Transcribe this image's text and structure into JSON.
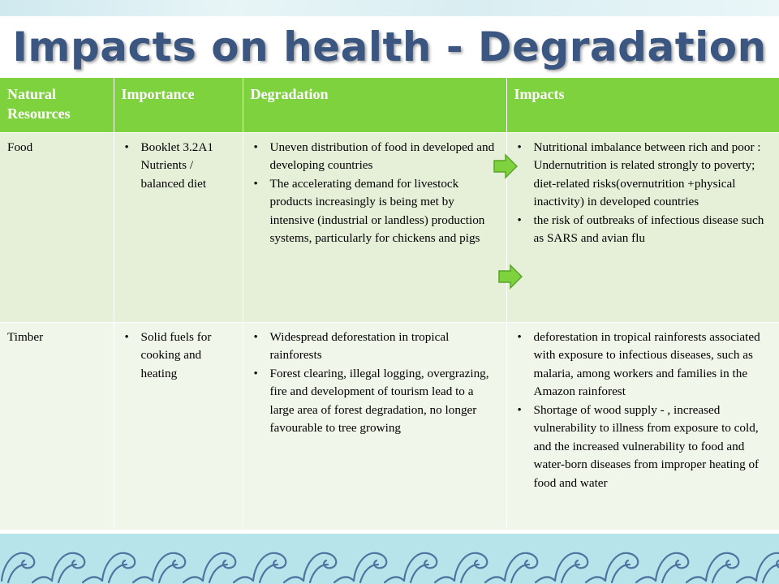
{
  "slide": {
    "title": "Impacts on health - Degradation"
  },
  "table": {
    "headers": [
      "Natural Resources",
      "Importance",
      "Degradation",
      "Impacts"
    ],
    "rows": [
      {
        "resource": "Food",
        "importance": [
          "Booklet 3.2A1 Nutrients / balanced diet"
        ],
        "degradation": [
          "Uneven distribution of food in developed and developing countries",
          "The accelerating demand for livestock products increasingly is being met by intensive (industrial or landless) production systems, particularly for chickens and pigs"
        ],
        "impacts": [
          "Nutritional imbalance between rich and poor : Undernutrition is related strongly to poverty; diet-related risks(overnutrition +physical inactivity) in developed countries",
          "the risk of outbreaks of infectious disease such as SARS and avian flu"
        ]
      },
      {
        "resource": "Timber",
        "importance": [
          "Solid fuels for cooking and heating"
        ],
        "degradation": [
          "Widespread deforestation in tropical rainforests",
          "Forest clearing, illegal logging, overgrazing, fire and development of tourism lead to a large area of forest degradation, no longer favourable to tree growing"
        ],
        "impacts": [
          "deforestation in tropical rainforests associated with exposure to infectious diseases, such as malaria, among workers and families in the Amazon rainforest",
          "Shortage of wood supply - , increased vulnerability to illness from exposure to cold, and the increased vulnerability to food and water-born diseases from improper heating of food and water"
        ]
      }
    ]
  },
  "icons": {
    "arrow": "right-arrow-icon",
    "arrow_color": "#7ed23e",
    "header_color": "#7ed23e",
    "title_color": "#3b5680",
    "wave_color": "#5a7fa8"
  }
}
